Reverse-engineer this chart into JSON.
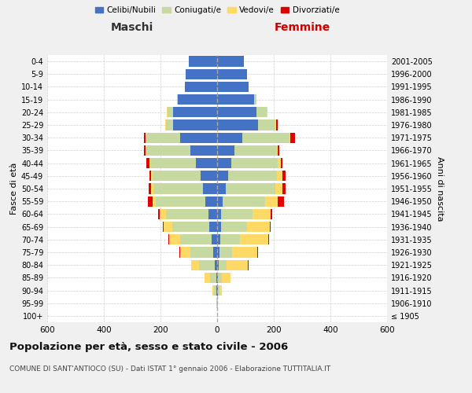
{
  "age_groups": [
    "100+",
    "95-99",
    "90-94",
    "85-89",
    "80-84",
    "75-79",
    "70-74",
    "65-69",
    "60-64",
    "55-59",
    "50-54",
    "45-49",
    "40-44",
    "35-39",
    "30-34",
    "25-29",
    "20-24",
    "15-19",
    "10-14",
    "5-9",
    "0-4"
  ],
  "birth_years": [
    "≤ 1905",
    "1906-1910",
    "1911-1915",
    "1916-1920",
    "1921-1925",
    "1926-1930",
    "1931-1935",
    "1936-1940",
    "1941-1945",
    "1946-1950",
    "1951-1955",
    "1956-1960",
    "1961-1965",
    "1966-1970",
    "1971-1975",
    "1976-1980",
    "1981-1985",
    "1986-1990",
    "1991-1995",
    "1996-2000",
    "2001-2005"
  ],
  "male": {
    "celibi": [
      0,
      0,
      2,
      4,
      8,
      15,
      20,
      28,
      30,
      42,
      50,
      58,
      75,
      95,
      130,
      155,
      155,
      140,
      115,
      110,
      100
    ],
    "coniugati": [
      0,
      2,
      8,
      22,
      55,
      80,
      110,
      130,
      150,
      175,
      175,
      170,
      160,
      155,
      120,
      25,
      20,
      2,
      0,
      0,
      0
    ],
    "vedovi": [
      0,
      2,
      8,
      18,
      30,
      35,
      40,
      30,
      22,
      12,
      8,
      5,
      3,
      2,
      2,
      2,
      2,
      0,
      0,
      0,
      0
    ],
    "divorziati": [
      0,
      0,
      0,
      0,
      0,
      2,
      2,
      4,
      5,
      15,
      8,
      5,
      12,
      5,
      5,
      2,
      2,
      0,
      0,
      0,
      0
    ]
  },
  "female": {
    "nubili": [
      0,
      0,
      2,
      4,
      5,
      8,
      10,
      15,
      15,
      20,
      30,
      40,
      50,
      60,
      90,
      145,
      140,
      130,
      110,
      105,
      95
    ],
    "coniugate": [
      0,
      2,
      6,
      12,
      28,
      45,
      70,
      90,
      110,
      150,
      175,
      170,
      165,
      150,
      165,
      60,
      35,
      8,
      0,
      0,
      0
    ],
    "vedove": [
      0,
      2,
      10,
      30,
      75,
      90,
      100,
      80,
      65,
      45,
      25,
      20,
      10,
      5,
      4,
      4,
      2,
      0,
      0,
      0,
      0
    ],
    "divorziate": [
      0,
      0,
      0,
      0,
      2,
      2,
      2,
      3,
      5,
      20,
      12,
      12,
      5,
      5,
      15,
      5,
      2,
      0,
      0,
      0,
      0
    ]
  },
  "colors": {
    "celibi": "#4472c4",
    "coniugati": "#c5d9a0",
    "vedovi": "#ffd966",
    "divorziati": "#e00000"
  },
  "title": "Popolazione per età, sesso e stato civile - 2006",
  "subtitle": "COMUNE DI SANT'ANTIOCO (SU) - Dati ISTAT 1° gennaio 2006 - Elaborazione TUTTITALIA.IT",
  "xlabel_left": "Maschi",
  "xlabel_right": "Femmine",
  "ylabel_left": "Fasce di età",
  "ylabel_right": "Anni di nascita",
  "xlim": 600,
  "legend_labels": [
    "Celibi/Nubili",
    "Coniugati/e",
    "Vedovi/e",
    "Divorziati/e"
  ],
  "bg_color": "#f0f0f0",
  "plot_bg": "#ffffff",
  "grid_color": "#cccccc"
}
